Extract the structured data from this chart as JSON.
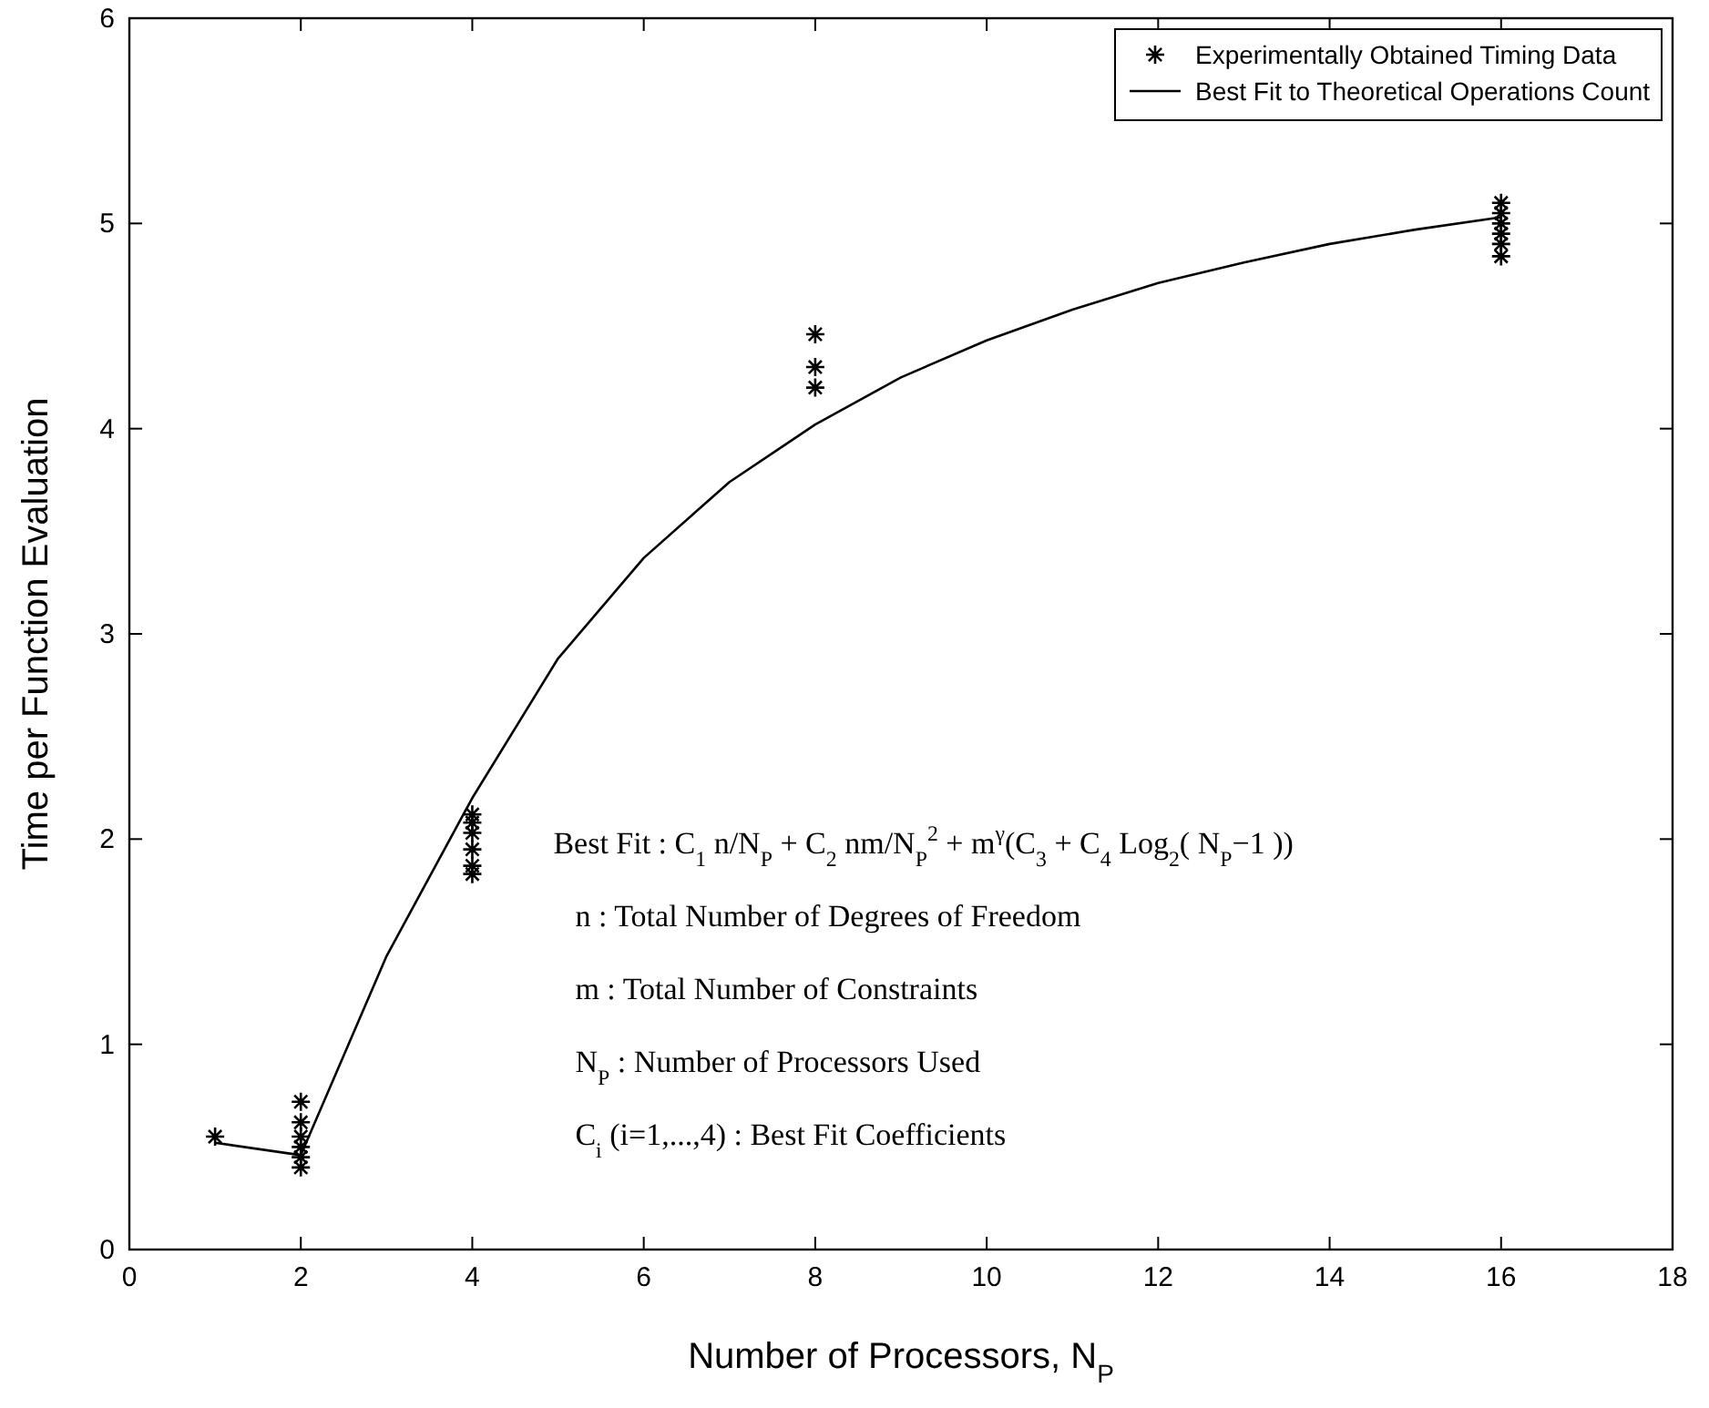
{
  "chart_data": {
    "type": "scatter",
    "xlabel": "Number of Processors,  N$_{P}$",
    "ylabel": "Time per Function Evaluation",
    "xlim": [
      0,
      18
    ],
    "xticks": [
      0,
      2,
      4,
      6,
      8,
      10,
      12,
      14,
      16,
      18
    ],
    "ylim": [
      0,
      6
    ],
    "yticks": [
      0,
      1,
      2,
      3,
      4,
      5,
      6
    ],
    "legend": "top right",
    "grid": false,
    "series": [
      {
        "name": "Experimentally Obtained Timing Data",
        "marker": "cross",
        "color": "#000000",
        "x": [
          1,
          2,
          2,
          2,
          2,
          2,
          2,
          4,
          4,
          4,
          4,
          4,
          4,
          8,
          8,
          8,
          16,
          16,
          16,
          16,
          16,
          16
        ],
        "values": [
          0.55,
          0.4,
          0.45,
          0.5,
          0.55,
          0.62,
          0.72,
          1.83,
          1.87,
          1.95,
          2.03,
          2.08,
          2.12,
          4.2,
          4.3,
          4.46,
          4.84,
          4.9,
          4.95,
          5.0,
          5.05,
          5.1
        ]
      },
      {
        "name": "Best Fit to Theoretical Operations Count",
        "type": "line",
        "marker": "none",
        "line_style": "solid",
        "color": "#000000",
        "x": [
          1,
          2,
          3,
          4,
          5,
          6,
          7,
          8,
          9,
          10,
          11,
          12,
          13,
          14,
          15,
          16
        ],
        "values": [
          0.52,
          0.46,
          1.43,
          2.2,
          2.88,
          3.37,
          3.74,
          4.02,
          4.25,
          4.43,
          4.58,
          4.71,
          4.81,
          4.9,
          4.97,
          5.03
        ]
      }
    ],
    "annotations": [
      "Best Fit : C$_{1}$ n/N$_{P}$ + C$_{2}$ nm/N$_{P}$$^{2}$ + m$^{γ}$(C$_{3}$ + C$_{4}$ Log$_{2}$( N$_{P}$−1 ))",
      "n : Total Number of Degrees of Freedom",
      "m : Total Number of Constraints",
      "N$_{P}$ : Number of Processors Used",
      "C$_{i}$ (i=1,...,4) : Best Fit Coefficients"
    ]
  }
}
